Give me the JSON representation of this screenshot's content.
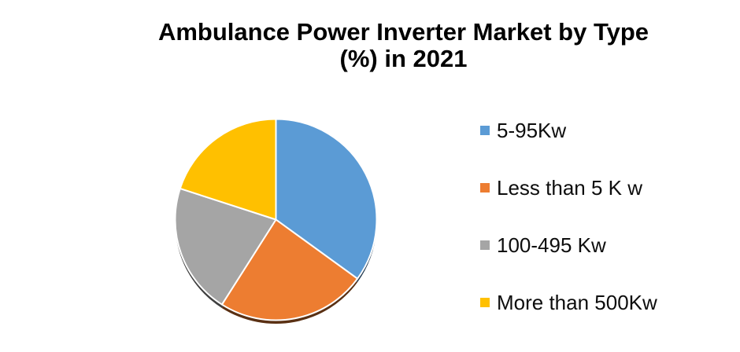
{
  "header": {
    "title_line1": "Ambulance Power Inverter Market by Type",
    "title_line2": "(%) in 2021"
  },
  "chart_data": {
    "type": "pie",
    "title": "Ambulance Power Inverter Market by Type (%) in 2021",
    "unit": "%",
    "categories": [
      "5-95Kw",
      "Less than 5 K w",
      "100-495 Kw",
      "More than 500Kw"
    ],
    "values": [
      35,
      24,
      21,
      20
    ],
    "colors": [
      "#5B9BD5",
      "#ED7D31",
      "#A5A5A5",
      "#FFC000"
    ],
    "legend_position": "right",
    "start_angle_deg": 0,
    "direction": "clockwise",
    "slice_border_color": "#FFFFFF",
    "has_bottom_shadow": true
  }
}
